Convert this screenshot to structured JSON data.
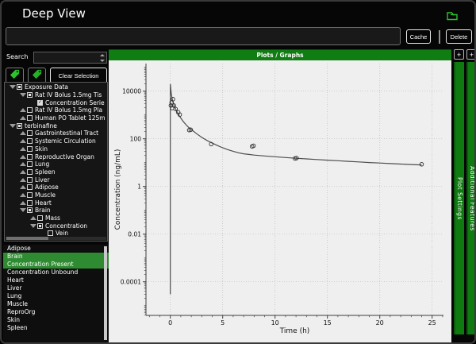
{
  "window": {
    "title": "Deep View"
  },
  "toolbar": {
    "input_value": "",
    "cache_label": "Cache",
    "delete_label": "Delete"
  },
  "sidebar": {
    "search_label": "Search",
    "search_value": "",
    "clear_selection_label": "Clear Selection",
    "tree": [
      {
        "label": "Exposure Data",
        "level": 0,
        "expand": "down",
        "check": "partial"
      },
      {
        "label": "Rat IV Bolus 1.5mg Tis",
        "level": 1,
        "expand": "down",
        "check": "partial"
      },
      {
        "label": "Concentration Serie",
        "level": 2,
        "expand": null,
        "check": "checked"
      },
      {
        "label": "Rat IV Bolus 1.5mg Pla",
        "level": 1,
        "expand": "up",
        "check": "empty"
      },
      {
        "label": "Human PO Tablet 125m",
        "level": 1,
        "expand": "up",
        "check": "empty"
      },
      {
        "label": "terbinafine",
        "level": 0,
        "expand": "down",
        "check": "partial"
      },
      {
        "label": "Gastrointestinal Tract",
        "level": 1,
        "expand": "up",
        "check": "empty"
      },
      {
        "label": "Systemic Circulation",
        "level": 1,
        "expand": "up",
        "check": "empty"
      },
      {
        "label": "Skin",
        "level": 1,
        "expand": "up",
        "check": "empty"
      },
      {
        "label": "Reproductive Organ",
        "level": 1,
        "expand": "up",
        "check": "empty"
      },
      {
        "label": "Lung",
        "level": 1,
        "expand": "up",
        "check": "empty"
      },
      {
        "label": "Spleen",
        "level": 1,
        "expand": "up",
        "check": "empty"
      },
      {
        "label": "Liver",
        "level": 1,
        "expand": "up",
        "check": "empty"
      },
      {
        "label": "Adipose",
        "level": 1,
        "expand": "up",
        "check": "empty"
      },
      {
        "label": "Muscle",
        "level": 1,
        "expand": "up",
        "check": "empty"
      },
      {
        "label": "Heart",
        "level": 1,
        "expand": "up",
        "check": "empty"
      },
      {
        "label": "Brain",
        "level": 1,
        "expand": "down",
        "check": "partial"
      },
      {
        "label": "Mass",
        "level": 2,
        "expand": "up",
        "check": "empty"
      },
      {
        "label": "Concentration",
        "level": 2,
        "expand": "down",
        "check": "partial"
      },
      {
        "label": "Vein",
        "level": 3,
        "expand": null,
        "check": "empty"
      }
    ],
    "list": {
      "items": [
        "Adipose",
        "Brain",
        "Concentration Present",
        "Concentration Unbound",
        "Heart",
        "Liver",
        "Lung",
        "Muscle",
        "ReproOrg",
        "Skin",
        "Spleen"
      ],
      "selected": [
        "Brain",
        "Concentration Present"
      ]
    }
  },
  "plot_panel": {
    "header": "Plots / Graphs"
  },
  "right_tabs": [
    {
      "label": "Plot Settings",
      "add_button": "+"
    },
    {
      "label": "Additional Features",
      "add_button": "+"
    }
  ],
  "colors": {
    "header_green": "#0f7d11",
    "selection_green": "#2e8b31",
    "icon_green": "#2bc42b",
    "plot_background": "#efefef"
  },
  "chart_data": {
    "type": "scatter",
    "title": "",
    "xlabel": "Time (h)",
    "ylabel": "Concentration (ng/mL)",
    "x_ticks": [
      0,
      5,
      10,
      15,
      20,
      25
    ],
    "x_minor_tick_step": 1,
    "xlim": [
      -2.3,
      26.1
    ],
    "y_scale": "log",
    "y_ticks": [
      {
        "label": "10000",
        "value": 10000
      },
      {
        "label": "100",
        "value": 100
      },
      {
        "label": "1",
        "value": 1
      },
      {
        "label": "0.01",
        "value": 0.01
      },
      {
        "label": "0.0001",
        "value": 0.0001
      }
    ],
    "ylim": [
      3.9e-06,
      145000
    ],
    "grid": true,
    "legend": false,
    "series": [
      {
        "name": "fitted curve",
        "type": "line",
        "points": [
          [
            0,
            3e-05
          ],
          [
            0,
            20000
          ],
          [
            0.05,
            11000
          ],
          [
            0.1,
            7400
          ],
          [
            0.15,
            5500
          ],
          [
            0.2,
            4300
          ],
          [
            0.25,
            3500
          ],
          [
            0.3,
            2950
          ],
          [
            0.4,
            2250
          ],
          [
            0.5,
            1800
          ],
          [
            0.6,
            1450
          ],
          [
            0.75,
            1100
          ],
          [
            0.9,
            860
          ],
          [
            1,
            740
          ],
          [
            1.25,
            520
          ],
          [
            1.5,
            390
          ],
          [
            1.75,
            300
          ],
          [
            2,
            245
          ],
          [
            2.5,
            165
          ],
          [
            3,
            115
          ],
          [
            3.5,
            85
          ],
          [
            4,
            66
          ],
          [
            4.5,
            52
          ],
          [
            5,
            42
          ],
          [
            5.5,
            35
          ],
          [
            6,
            30
          ],
          [
            6.5,
            26
          ],
          [
            7,
            23.5
          ],
          [
            7.5,
            22
          ],
          [
            8,
            20.8
          ],
          [
            9,
            19
          ],
          [
            10,
            17.6
          ],
          [
            11,
            16.4
          ],
          [
            12,
            15.3
          ],
          [
            13,
            14.3
          ],
          [
            14,
            13.5
          ],
          [
            15,
            12.7
          ],
          [
            16,
            12
          ],
          [
            17,
            11.3
          ],
          [
            18,
            10.7
          ],
          [
            19,
            10.1
          ],
          [
            20,
            9.6
          ],
          [
            21,
            9.1
          ],
          [
            22,
            8.7
          ],
          [
            23,
            8.3
          ],
          [
            24,
            8
          ]
        ]
      },
      {
        "name": "observed concentration",
        "type": "scatter",
        "marker": "circle-open",
        "points": [
          [
            0.05,
            2500
          ],
          [
            0.12,
            3300
          ],
          [
            0.17,
            1950
          ],
          [
            0.25,
            4600
          ],
          [
            0.33,
            2500
          ],
          [
            0.5,
            1780
          ],
          [
            0.75,
            1300
          ],
          [
            0.9,
            1030
          ],
          [
            1.8,
            230
          ],
          [
            1.95,
            240
          ],
          [
            3.9,
            60
          ],
          [
            7.8,
            48
          ],
          [
            7.95,
            51
          ],
          [
            11.9,
            15
          ],
          [
            12.05,
            15.5
          ],
          [
            24,
            8.5
          ]
        ]
      }
    ]
  }
}
